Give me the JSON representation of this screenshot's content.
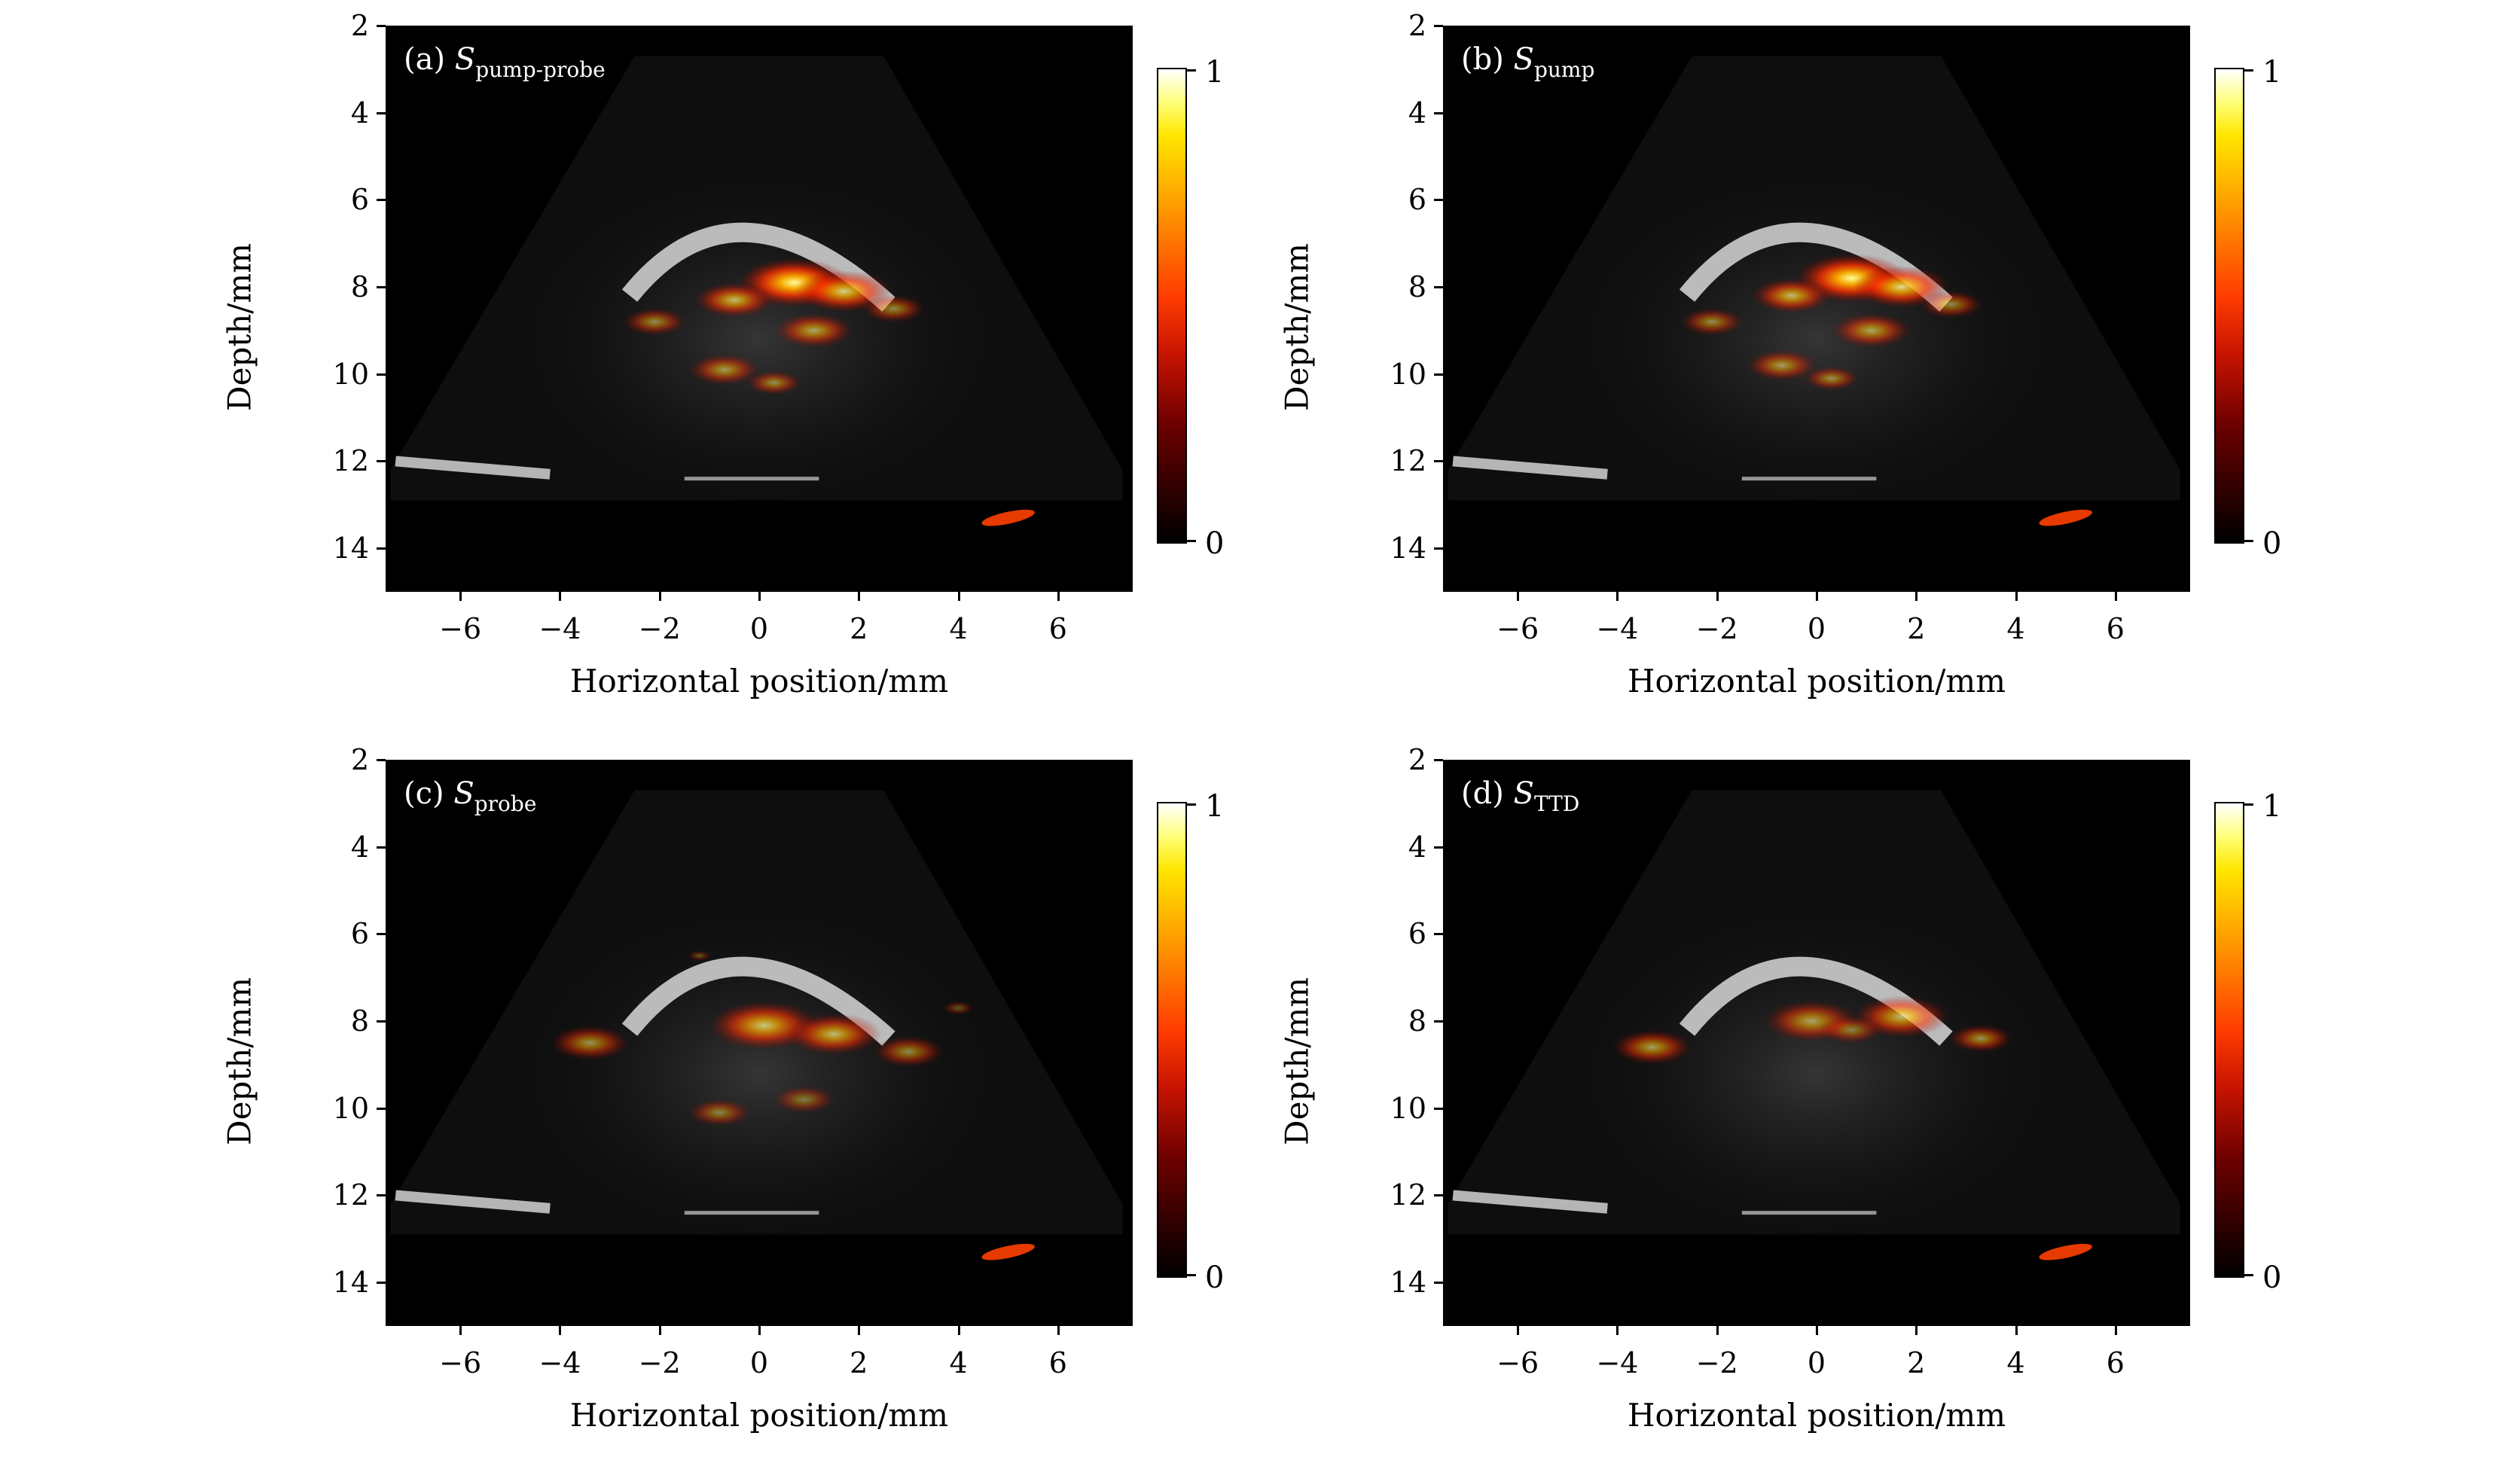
{
  "figure": {
    "panels": [
      {
        "id": "a",
        "prefix": "(a)",
        "symbol": "S",
        "subscript": "pump-probe"
      },
      {
        "id": "b",
        "prefix": "(b)",
        "symbol": "S",
        "subscript": "pump"
      },
      {
        "id": "c",
        "prefix": "(c)",
        "symbol": "S",
        "subscript": "probe"
      },
      {
        "id": "d",
        "prefix": "(d)",
        "symbol": "S",
        "subscript": "TTD"
      }
    ],
    "ylabel": "Depth/mm",
    "xlabel": "Horizontal position/mm",
    "yticks": [
      "2",
      "4",
      "6",
      "8",
      "10",
      "12",
      "14"
    ],
    "xticks": [
      "−6",
      "−4",
      "−2",
      "0",
      "2",
      "4",
      "6"
    ],
    "colorbar": {
      "min_label": "0",
      "max_label": "1",
      "colormap": "hot"
    }
  },
  "chart_data": [
    {
      "type": "heatmap",
      "panel": "(a)",
      "title": "S pump-probe",
      "xlabel": "Horizontal position/mm",
      "ylabel": "Depth/mm",
      "xlim": [
        -7.5,
        7.5
      ],
      "ylim": [
        15,
        2
      ],
      "colorbar_range": [
        0,
        1
      ]
    },
    {
      "type": "heatmap",
      "panel": "(b)",
      "title": "S pump",
      "xlabel": "Horizontal position/mm",
      "ylabel": "Depth/mm",
      "xlim": [
        -7.5,
        7.5
      ],
      "ylim": [
        15,
        2
      ],
      "colorbar_range": [
        0,
        1
      ]
    },
    {
      "type": "heatmap",
      "panel": "(c)",
      "title": "S probe",
      "xlabel": "Horizontal position/mm",
      "ylabel": "Depth/mm",
      "xlim": [
        -7.5,
        7.5
      ],
      "ylim": [
        15,
        2
      ],
      "colorbar_range": [
        0,
        1
      ]
    },
    {
      "type": "heatmap",
      "panel": "(d)",
      "title": "S TTD",
      "xlabel": "Horizontal position/mm",
      "ylabel": "Depth/mm",
      "xlim": [
        -7.5,
        7.5
      ],
      "ylim": [
        15,
        2
      ],
      "colorbar_range": [
        0,
        1
      ]
    }
  ]
}
